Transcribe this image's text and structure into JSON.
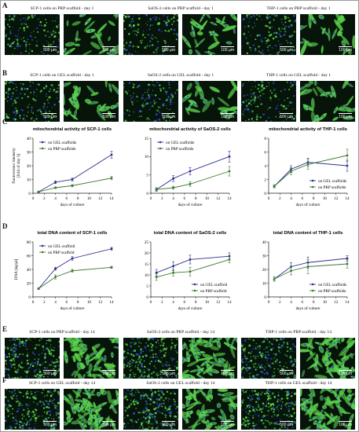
{
  "panel_labels": [
    "A",
    "B",
    "C",
    "D",
    "E",
    "F"
  ],
  "micro_rows": [
    {
      "label_index": 0,
      "captions": [
        "SCP-1 cells on PRP scaffold - day 1",
        "SaOS-2 cells on PRP scaffold - day 1",
        "THP-1 cells on PRP scaffold - day 1"
      ],
      "scales": [
        "500 µm",
        "100 µm"
      ],
      "tint": "sparse"
    },
    {
      "label_index": 1,
      "captions": [
        "SCP-1 cells on GEL scaffold - day 1",
        "SaOS-2 cells on GEL scaffold - day 1",
        "THP-1 cells on GEL scaffold - day 1"
      ],
      "scales": [
        "500 µm",
        "100 µm"
      ],
      "tint": "sparse"
    },
    {
      "label_index": 4,
      "captions": [
        "SCP-1 cells on PRP scaffold - day 14",
        "SaOS-2 cells on PRP scaffold - day 14",
        "THP-1 cells on PRP scaffold - day 14"
      ],
      "scales": [
        "500 µm",
        "100 µm"
      ],
      "tint": "dense"
    },
    {
      "label_index": 5,
      "captions": [
        "SCP-1 cells on GEL scaffold - day 14",
        "SaOS-2 cells on GEL scaffold - day 14",
        "THP-1 cells on GEL scaffold - day 14"
      ],
      "scales": [
        "500 µm",
        "100 µm"
      ],
      "tint": "dense"
    }
  ],
  "colors": {
    "gel": "#2e2e8f",
    "prp": "#3c7a2e",
    "fluor_green": "#5ad24a",
    "fluor_blue": "#2f4fd0"
  },
  "chart_data": [
    {
      "type": "line",
      "title": "mitochondrial activity of SCP-1 cells",
      "ylabel": "fluorescence intensity [fold of day 1]",
      "xlabel": "days of culture",
      "x": [
        1,
        4,
        7,
        14
      ],
      "xticks": [
        0,
        2,
        4,
        6,
        8,
        10,
        12,
        14
      ],
      "yticks": [
        0,
        10,
        20,
        30,
        40
      ],
      "ylim": [
        0,
        40
      ],
      "xlim": [
        0,
        14
      ],
      "legend": "top-left",
      "series": [
        {
          "name": "on GEL scaffolds",
          "key": "gel",
          "values": [
            1,
            8,
            10,
            28
          ],
          "err": [
            0.5,
            1,
            1,
            2.5
          ]
        },
        {
          "name": "on PRP scaffolds",
          "key": "prp",
          "values": [
            1,
            4,
            5.5,
            11
          ],
          "err": [
            0.3,
            0.6,
            0.8,
            1.2
          ]
        }
      ]
    },
    {
      "type": "line",
      "title": "mitochondrial activity of SaOS-2 cells",
      "ylabel": "",
      "xlabel": "days of culture",
      "x": [
        1,
        4,
        7,
        14
      ],
      "xticks": [
        0,
        2,
        4,
        6,
        8,
        10,
        12,
        14
      ],
      "yticks": [
        0,
        5,
        10,
        15
      ],
      "ylim": [
        0,
        15
      ],
      "xlim": [
        0,
        14
      ],
      "legend": "top-left",
      "series": [
        {
          "name": "on GEL scaffolds",
          "key": "gel",
          "values": [
            1,
            4,
            6,
            10
          ],
          "err": [
            0.5,
            0.8,
            1,
            1.5
          ]
        },
        {
          "name": "on PRP scaffolds",
          "key": "prp",
          "values": [
            1,
            1.5,
            2.5,
            6
          ],
          "err": [
            0.3,
            0.4,
            0.6,
            1.3
          ]
        }
      ]
    },
    {
      "type": "line",
      "title": "mitochondrial activity of THP-1 cells",
      "ylabel": "",
      "xlabel": "days of culture",
      "x": [
        1,
        4,
        7,
        14
      ],
      "xticks": [
        0,
        2,
        4,
        6,
        8,
        10,
        12,
        14
      ],
      "yticks": [
        0,
        2,
        4,
        6,
        8
      ],
      "ylim": [
        0,
        8
      ],
      "xlim": [
        0,
        14
      ],
      "legend": "bottom-right",
      "series": [
        {
          "name": "on GEL scaffolds",
          "key": "gel",
          "values": [
            1,
            3.5,
            4.5,
            4
          ],
          "err": [
            0.2,
            0.5,
            0.6,
            0.8
          ]
        },
        {
          "name": "on PRP scaffolds",
          "key": "prp",
          "values": [
            1,
            3.2,
            4.2,
            5.5
          ],
          "err": [
            0.2,
            0.5,
            0.7,
            0.9
          ]
        }
      ]
    },
    {
      "type": "line",
      "title": "total DNA content of SCP-1 cells",
      "ylabel": "DNA [ng/µl]",
      "xlabel": "days of culture",
      "x": [
        1,
        4,
        7,
        14
      ],
      "xticks": [
        0,
        2,
        4,
        6,
        8,
        10,
        12,
        14
      ],
      "yticks": [
        0,
        20,
        40,
        60,
        80
      ],
      "ylim": [
        0,
        80
      ],
      "xlim": [
        0,
        14
      ],
      "legend": "top-left",
      "series": [
        {
          "name": "on GEL scaffold",
          "key": "gel",
          "values": [
            12,
            41,
            56,
            70
          ],
          "err": [
            1,
            2,
            2.5,
            2
          ]
        },
        {
          "name": "on PRP scaffold",
          "key": "prp",
          "values": [
            12,
            29,
            38,
            43
          ],
          "err": [
            1,
            3,
            2,
            1.5
          ]
        }
      ]
    },
    {
      "type": "line",
      "title": "total DNA content of SaOS-2 cells",
      "ylabel": "",
      "xlabel": "days of culture",
      "x": [
        1,
        4,
        7,
        14
      ],
      "xticks": [
        0,
        2,
        4,
        6,
        8,
        10,
        12,
        14
      ],
      "yticks": [
        0,
        5,
        10,
        15,
        20,
        25
      ],
      "ylim": [
        0,
        25
      ],
      "xlim": [
        0,
        14
      ],
      "legend": "bottom-right",
      "series": [
        {
          "name": "on GEL scaffold",
          "key": "gel",
          "values": [
            11,
            14,
            17,
            18.5
          ],
          "err": [
            1.5,
            2,
            2,
            1.5
          ]
        },
        {
          "name": "on PRP scaffold",
          "key": "prp",
          "values": [
            9,
            11,
            11.5,
            17
          ],
          "err": [
            1.5,
            1.5,
            2,
            1.5
          ]
        }
      ]
    },
    {
      "type": "line",
      "title": "total DNA content of THP-1 cells",
      "ylabel": "",
      "xlabel": "days of culture",
      "x": [
        1,
        4,
        7,
        14
      ],
      "xticks": [
        0,
        2,
        4,
        6,
        8,
        10,
        12,
        14
      ],
      "yticks": [
        0,
        10,
        20,
        30,
        40
      ],
      "ylim": [
        0,
        40
      ],
      "xlim": [
        0,
        14
      ],
      "legend": "bottom-right",
      "series": [
        {
          "name": "on GEL scaffolds",
          "key": "gel",
          "values": [
            13,
            22,
            25,
            28
          ],
          "err": [
            1.5,
            3,
            4,
            2
          ]
        },
        {
          "name": "on PRP scaffolds",
          "key": "prp",
          "values": [
            13,
            19,
            22,
            24
          ],
          "err": [
            1.5,
            3,
            5,
            3
          ]
        }
      ]
    }
  ]
}
